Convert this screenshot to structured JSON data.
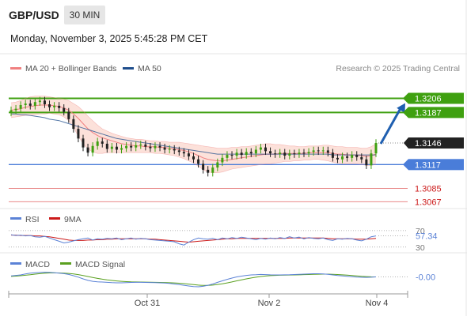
{
  "header": {
    "symbol": "GBP/USD",
    "timeframe": "30 MIN",
    "datetime": "Monday, November 3, 2025 5:45:28 PM CET"
  },
  "colors": {
    "bands_line": "#f08080",
    "bands_fill": "#fcdcd4",
    "ma50": "#1f4e8c",
    "resistance": "#3fa010",
    "pivot": "#4a7dd9",
    "support": "#e98a8a",
    "candle_up": "#3fa010",
    "candle_down": "#222222",
    "arrow": "#1f5fb0",
    "rsi": "#5b82d6",
    "rsi_ma": "#cc1a1a",
    "macd": "#5b82d6",
    "macd_signal": "#5aa020",
    "current_price_bg": "#222222"
  },
  "chart_data": [
    {
      "type": "candlestick",
      "title": "GBP/USD",
      "legend": [
        "MA 20 + Bollinger Bands",
        "MA 50"
      ],
      "legend_position": "top-left",
      "credit": "Research © 2025 Trading Central",
      "x_ticks": [
        "Oct 31",
        "Nov 2",
        "Nov 4"
      ],
      "ylim": [
        1.306,
        1.3215
      ],
      "levels": [
        {
          "label": "1.3206",
          "value": 1.3206,
          "kind": "resistance"
        },
        {
          "label": "1.3187",
          "value": 1.3187,
          "kind": "resistance"
        },
        {
          "label": "1.3146",
          "value": 1.3146,
          "kind": "current"
        },
        {
          "label": "1.3117",
          "value": 1.3117,
          "kind": "pivot"
        },
        {
          "label": "1.3085",
          "value": 1.3085,
          "kind": "support"
        },
        {
          "label": "1.3067",
          "value": 1.3067,
          "kind": "support"
        }
      ],
      "close": [
        1.319,
        1.3192,
        1.3197,
        1.3199,
        1.3196,
        1.3201,
        1.3203,
        1.3198,
        1.3194,
        1.3196,
        1.3193,
        1.3188,
        1.3178,
        1.3165,
        1.3152,
        1.314,
        1.3133,
        1.3142,
        1.3148,
        1.3145,
        1.3138,
        1.3141,
        1.3137,
        1.3139,
        1.3142,
        1.314,
        1.3143,
        1.3144,
        1.3141,
        1.3139,
        1.3142,
        1.314,
        1.3137,
        1.3138,
        1.3136,
        1.3134,
        1.3132,
        1.3128,
        1.3124,
        1.3118,
        1.311,
        1.3106,
        1.3113,
        1.312,
        1.3126,
        1.313,
        1.3129,
        1.3133,
        1.313,
        1.3134,
        1.3132,
        1.3137,
        1.314,
        1.3135,
        1.3132,
        1.3131,
        1.3133,
        1.3129,
        1.3132,
        1.3131,
        1.3133,
        1.3132,
        1.3134,
        1.3136,
        1.3135,
        1.3136,
        1.3133,
        1.3126,
        1.3124,
        1.3128,
        1.3126,
        1.313,
        1.3127,
        1.3124,
        1.3116,
        1.3132,
        1.3146
      ],
      "ma20": [
        1.319,
        1.3191,
        1.3192,
        1.3194,
        1.3195,
        1.3196,
        1.3197,
        1.3197,
        1.3197,
        1.3196,
        1.3195,
        1.3193,
        1.319,
        1.3185,
        1.3179,
        1.3172,
        1.3165,
        1.316,
        1.3156,
        1.3153,
        1.3151,
        1.3149,
        1.3147,
        1.3145,
        1.3144,
        1.3143,
        1.3142,
        1.3142,
        1.3141,
        1.3141,
        1.3141,
        1.314,
        1.314,
        1.3139,
        1.3138,
        1.3137,
        1.3136,
        1.3134,
        1.3132,
        1.3129,
        1.3126,
        1.3124,
        1.3123,
        1.3122,
        1.3122,
        1.3123,
        1.3124,
        1.3125,
        1.3126,
        1.3127,
        1.3128,
        1.3129,
        1.313,
        1.3131,
        1.3131,
        1.3131,
        1.3132,
        1.3132,
        1.3132,
        1.3132,
        1.3132,
        1.3132,
        1.3133,
        1.3133,
        1.3133,
        1.3133,
        1.3133,
        1.3132,
        1.3131,
        1.3131,
        1.313,
        1.313,
        1.313,
        1.3129,
        1.3128,
        1.3129,
        1.3131
      ],
      "bb_upper": [
        1.32,
        1.3201,
        1.3203,
        1.3206,
        1.3208,
        1.3209,
        1.3209,
        1.3209,
        1.3208,
        1.3207,
        1.3206,
        1.3205,
        1.3203,
        1.3199,
        1.3195,
        1.3189,
        1.3182,
        1.3176,
        1.317,
        1.3165,
        1.3162,
        1.3159,
        1.3157,
        1.3155,
        1.3153,
        1.3152,
        1.3151,
        1.3151,
        1.315,
        1.3149,
        1.3149,
        1.3148,
        1.3148,
        1.3147,
        1.3147,
        1.3147,
        1.3146,
        1.3145,
        1.3144,
        1.3143,
        1.3142,
        1.3141,
        1.314,
        1.3139,
        1.3139,
        1.3139,
        1.314,
        1.314,
        1.3141,
        1.3141,
        1.3142,
        1.3143,
        1.3144,
        1.3145,
        1.3145,
        1.3144,
        1.3144,
        1.3143,
        1.3142,
        1.3142,
        1.3141,
        1.3141,
        1.3142,
        1.3142,
        1.3142,
        1.3143,
        1.3143,
        1.3142,
        1.3141,
        1.3141,
        1.314,
        1.314,
        1.314,
        1.3139,
        1.3139,
        1.3141,
        1.3145
      ],
      "bb_lower": [
        1.318,
        1.3181,
        1.3182,
        1.3183,
        1.3183,
        1.3184,
        1.3185,
        1.3185,
        1.3186,
        1.3185,
        1.3184,
        1.3181,
        1.3176,
        1.3167,
        1.3155,
        1.3145,
        1.3138,
        1.3134,
        1.3132,
        1.3132,
        1.3133,
        1.3133,
        1.3133,
        1.3133,
        1.3133,
        1.3133,
        1.3133,
        1.3133,
        1.3133,
        1.3133,
        1.3132,
        1.3132,
        1.3131,
        1.313,
        1.3129,
        1.3127,
        1.3125,
        1.3122,
        1.3119,
        1.3115,
        1.311,
        1.3107,
        1.3106,
        1.3106,
        1.3107,
        1.3109,
        1.3111,
        1.3112,
        1.3113,
        1.3114,
        1.3115,
        1.3116,
        1.3117,
        1.3118,
        1.3118,
        1.3119,
        1.312,
        1.3121,
        1.3121,
        1.3122,
        1.3122,
        1.3123,
        1.3123,
        1.3124,
        1.3124,
        1.3123,
        1.3122,
        1.312,
        1.3119,
        1.3118,
        1.3118,
        1.3118,
        1.3118,
        1.3117,
        1.3116,
        1.3116,
        1.3117
      ],
      "ma50": [
        1.3185,
        1.3185,
        1.3184,
        1.3184,
        1.3183,
        1.3182,
        1.3181,
        1.318,
        1.3178,
        1.3177,
        1.3176,
        1.3174,
        1.3172,
        1.317,
        1.3168,
        1.3166,
        1.3164,
        1.3162,
        1.316,
        1.3158,
        1.3156,
        1.3154,
        1.3152,
        1.3151,
        1.315,
        1.3149,
        1.3148,
        1.3147,
        1.3146,
        1.3145,
        1.3144,
        1.3143,
        1.3142,
        1.3141,
        1.314,
        1.3139,
        1.3138,
        1.3137,
        1.3136,
        1.3135,
        1.3134,
        1.3133,
        1.3132,
        1.3131,
        1.3131,
        1.3131,
        1.3131,
        1.3131,
        1.3131,
        1.3131,
        1.3131,
        1.3131,
        1.3131,
        1.3131,
        1.3131,
        1.3131,
        1.3131,
        1.3131,
        1.3131,
        1.3131,
        1.3131,
        1.3131,
        1.3131,
        1.3131,
        1.3131,
        1.3131,
        1.3131,
        1.313,
        1.313,
        1.313,
        1.313,
        1.313,
        1.313,
        1.313,
        1.313,
        1.313,
        1.313
      ],
      "projection": {
        "from": 1.3146,
        "to": 1.3206
      }
    },
    {
      "type": "line",
      "title": "RSI",
      "legend": [
        "RSI",
        "9MA"
      ],
      "levels": [
        {
          "label": "70",
          "value": 70
        },
        {
          "label": "30",
          "value": 30
        }
      ],
      "current_label": "57.34",
      "ylim": [
        20,
        85
      ],
      "rsi": [
        60,
        58,
        59,
        57,
        58,
        55,
        54,
        56,
        52,
        48,
        44,
        40,
        42,
        45,
        48,
        50,
        52,
        47,
        50,
        49,
        51,
        50,
        52,
        48,
        50,
        52,
        49,
        51,
        50,
        48,
        47,
        46,
        45,
        44,
        43,
        38,
        35,
        42,
        48,
        52,
        50,
        49,
        51,
        48,
        52,
        50,
        53,
        51,
        54,
        52,
        50,
        48,
        51,
        49,
        52,
        50,
        53,
        51,
        55,
        52,
        54,
        50,
        53,
        51,
        50,
        52,
        48,
        46,
        50,
        49,
        51,
        50,
        47,
        45,
        49,
        55,
        57
      ],
      "rsi_ma": [
        59,
        59,
        58,
        58,
        58,
        57,
        57,
        56,
        55,
        53,
        51,
        49,
        47,
        46,
        46,
        46,
        47,
        47,
        48,
        48,
        49,
        49,
        50,
        50,
        50,
        50,
        50,
        50,
        50,
        49,
        49,
        48,
        47,
        46,
        45,
        44,
        43,
        42,
        43,
        44,
        45,
        46,
        47,
        48,
        49,
        50,
        50,
        51,
        51,
        51,
        51,
        51,
        51,
        51,
        51,
        51,
        51,
        51,
        52,
        52,
        52,
        52,
        52,
        52,
        52,
        52,
        51,
        50,
        50,
        50,
        50,
        50,
        49,
        49,
        49,
        50,
        51
      ]
    },
    {
      "type": "line",
      "title": "MACD",
      "legend": [
        "MACD",
        "MACD Signal"
      ],
      "current_label": "-0.00",
      "ylim": [
        -1.4,
        1.0
      ],
      "macd": [
        0.1,
        0.15,
        0.2,
        0.3,
        0.38,
        0.42,
        0.45,
        0.48,
        0.46,
        0.42,
        0.38,
        0.33,
        0.25,
        0.12,
        -0.02,
        -0.2,
        -0.35,
        -0.45,
        -0.5,
        -0.52,
        -0.55,
        -0.58,
        -0.6,
        -0.6,
        -0.58,
        -0.56,
        -0.55,
        -0.55,
        -0.56,
        -0.57,
        -0.58,
        -0.6,
        -0.62,
        -0.66,
        -0.72,
        -0.78,
        -0.85,
        -0.92,
        -0.98,
        -1.0,
        -0.95,
        -0.85,
        -0.72,
        -0.55,
        -0.4,
        -0.25,
        -0.12,
        0.0,
        0.08,
        0.15,
        0.2,
        0.22,
        0.25,
        0.23,
        0.21,
        0.2,
        0.2,
        0.21,
        0.22,
        0.24,
        0.26,
        0.28,
        0.3,
        0.32,
        0.32,
        0.3,
        0.26,
        0.2,
        0.14,
        0.1,
        0.06,
        0.02,
        -0.02,
        -0.04,
        -0.05,
        -0.03,
        0.0
      ],
      "macd_signal": [
        0.05,
        0.08,
        0.12,
        0.17,
        0.22,
        0.28,
        0.33,
        0.37,
        0.4,
        0.41,
        0.4,
        0.38,
        0.35,
        0.3,
        0.23,
        0.14,
        0.04,
        -0.06,
        -0.15,
        -0.23,
        -0.3,
        -0.36,
        -0.41,
        -0.45,
        -0.48,
        -0.5,
        -0.51,
        -0.52,
        -0.53,
        -0.54,
        -0.55,
        -0.56,
        -0.57,
        -0.59,
        -0.61,
        -0.64,
        -0.68,
        -0.73,
        -0.78,
        -0.83,
        -0.86,
        -0.86,
        -0.83,
        -0.77,
        -0.7,
        -0.61,
        -0.51,
        -0.4,
        -0.3,
        -0.2,
        -0.11,
        -0.03,
        0.04,
        0.09,
        0.13,
        0.15,
        0.17,
        0.18,
        0.19,
        0.2,
        0.21,
        0.23,
        0.24,
        0.26,
        0.27,
        0.28,
        0.28,
        0.26,
        0.24,
        0.21,
        0.18,
        0.14,
        0.1,
        0.06,
        0.03,
        0.01,
        0.0
      ]
    }
  ]
}
